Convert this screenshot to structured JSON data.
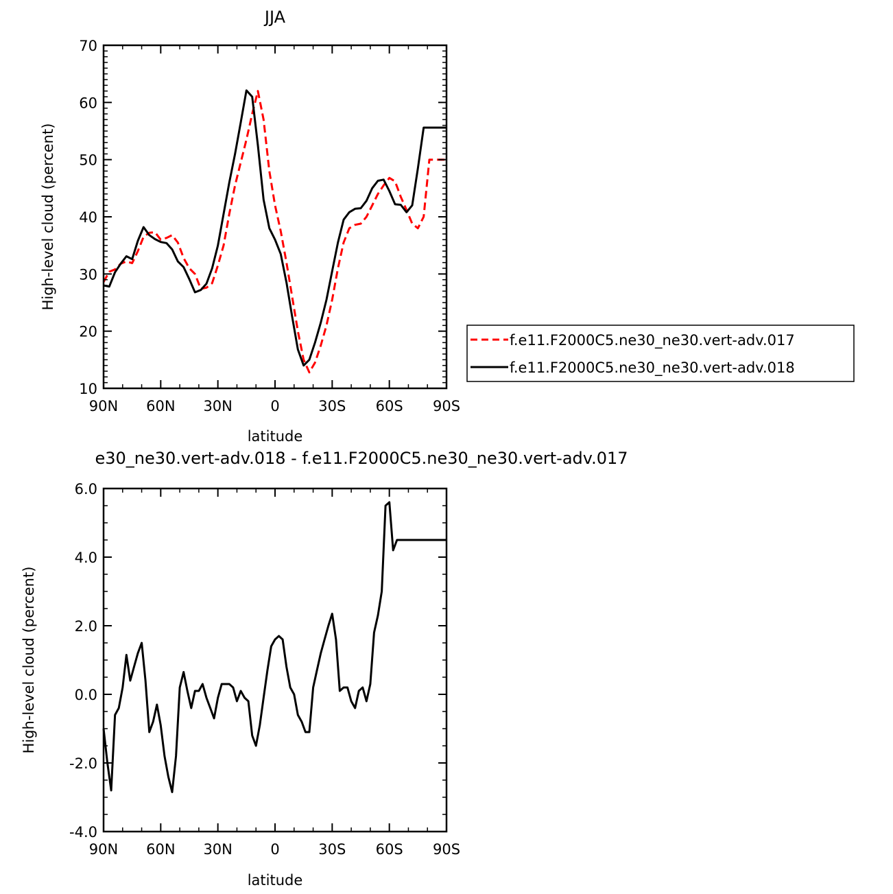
{
  "chart_data": [
    {
      "type": "line",
      "title": "JJA",
      "xlabel": "latitude",
      "ylabel": "High-level cloud (percent)",
      "xlim": [
        -90,
        90
      ],
      "ylim": [
        10,
        70
      ],
      "x_ticks": [
        -90,
        -60,
        -30,
        0,
        30,
        60,
        90
      ],
      "x_tick_labels": [
        "90N",
        "60N",
        "30N",
        "0",
        "30S",
        "60S",
        "90S"
      ],
      "y_ticks": [
        10,
        20,
        30,
        40,
        50,
        60,
        70
      ],
      "y_tick_labels": [
        "10",
        "20",
        "30",
        "40",
        "50",
        "60",
        "70"
      ],
      "grid": false,
      "legend_position": "right",
      "series": [
        {
          "name": "f.e11.F2000C5.ne30_ne30.vert-adv.017",
          "color": "#ff0000",
          "dash": "dashed",
          "x": [
            -90,
            -87,
            -84,
            -81,
            -78,
            -75,
            -72,
            -69,
            -66,
            -63,
            -60,
            -57,
            -54,
            -51,
            -48,
            -45,
            -42,
            -39,
            -36,
            -33,
            -30,
            -27,
            -24,
            -21,
            -18,
            -15,
            -12,
            -9,
            -6,
            -3,
            0,
            3,
            6,
            9,
            12,
            15,
            18,
            21,
            24,
            27,
            30,
            33,
            36,
            39,
            42,
            45,
            48,
            51,
            54,
            57,
            60,
            63,
            66,
            69,
            72,
            75,
            78,
            81,
            84,
            87,
            90
          ],
          "y": [
            28.6,
            30.4,
            30.8,
            31.8,
            32.2,
            31.9,
            34.0,
            36.5,
            37.2,
            37.3,
            36.0,
            36.3,
            36.8,
            35.5,
            32.8,
            31.0,
            30.0,
            27.4,
            27.6,
            28.4,
            31.5,
            35.0,
            40.5,
            45.5,
            49.5,
            53.5,
            58.0,
            62.0,
            57.0,
            48.0,
            42.0,
            37.5,
            32.0,
            26.0,
            20.0,
            15.0,
            12.8,
            14.5,
            17.5,
            21.0,
            25.5,
            31.0,
            35.5,
            38.0,
            38.6,
            38.8,
            40.0,
            42.0,
            44.0,
            45.5,
            46.8,
            46.2,
            43.5,
            41.2,
            38.8,
            38.0,
            40.0,
            50.0,
            50.0,
            50.0,
            50.0
          ]
        },
        {
          "name": "f.e11.F2000C5.ne30_ne30.vert-adv.018",
          "color": "#000000",
          "dash": "solid",
          "x": [
            -90,
            -87,
            -84,
            -81,
            -78,
            -75,
            -72,
            -69,
            -66,
            -63,
            -60,
            -57,
            -54,
            -51,
            -48,
            -45,
            -42,
            -39,
            -36,
            -33,
            -30,
            -27,
            -24,
            -21,
            -18,
            -15,
            -12,
            -9,
            -6,
            -3,
            0,
            3,
            6,
            9,
            12,
            15,
            18,
            21,
            24,
            27,
            30,
            33,
            36,
            39,
            42,
            45,
            48,
            51,
            54,
            57,
            60,
            63,
            66,
            69,
            72,
            75,
            78,
            81,
            84,
            87,
            90
          ],
          "y": [
            28.0,
            27.8,
            30.3,
            31.8,
            33.1,
            32.6,
            35.8,
            38.2,
            36.8,
            36.1,
            35.6,
            35.4,
            34.3,
            32.2,
            31.2,
            29.1,
            26.8,
            27.2,
            28.3,
            31.0,
            35.0,
            40.5,
            46.0,
            51.0,
            56.5,
            62.1,
            61.0,
            52.5,
            43.0,
            38.0,
            36.0,
            33.5,
            28.5,
            22.5,
            16.8,
            14.0,
            15.0,
            18.0,
            21.5,
            25.5,
            30.5,
            35.5,
            39.5,
            40.8,
            41.4,
            41.5,
            42.8,
            45.0,
            46.3,
            46.5,
            44.5,
            42.2,
            42.1,
            40.8,
            42.0,
            48.5,
            55.6,
            55.6,
            55.6,
            55.6,
            55.6
          ]
        }
      ]
    },
    {
      "type": "line",
      "title": "e30_ne30.vert-adv.018 - f.e11.F2000C5.ne30_ne30.vert-adv.017",
      "xlabel": "latitude",
      "ylabel": "High-level cloud (percent)",
      "xlim": [
        -90,
        90
      ],
      "ylim": [
        -4,
        6
      ],
      "x_ticks": [
        -90,
        -60,
        -30,
        0,
        30,
        60,
        90
      ],
      "x_tick_labels": [
        "90N",
        "60N",
        "30N",
        "0",
        "30S",
        "60S",
        "90S"
      ],
      "y_ticks": [
        -4,
        -2,
        0,
        2,
        4,
        6
      ],
      "y_tick_labels": [
        "-4.0",
        "-2.0",
        "0.0",
        "2.0",
        "4.0",
        "6.0"
      ],
      "grid": false,
      "series": [
        {
          "color": "#000000",
          "dash": "solid",
          "x": [
            -90,
            -88,
            -86,
            -84,
            -82,
            -80,
            -78,
            -76,
            -74,
            -72,
            -70,
            -68,
            -66,
            -64,
            -62,
            -60,
            -58,
            -56,
            -54,
            -52,
            -50,
            -48,
            -46,
            -44,
            -42,
            -40,
            -38,
            -36,
            -34,
            -32,
            -30,
            -28,
            -26,
            -24,
            -22,
            -20,
            -18,
            -16,
            -14,
            -12,
            -10,
            -8,
            -6,
            -4,
            -2,
            0,
            2,
            4,
            6,
            8,
            10,
            12,
            14,
            16,
            18,
            20,
            22,
            24,
            26,
            28,
            30,
            32,
            34,
            36,
            38,
            40,
            42,
            44,
            46,
            48,
            50,
            52,
            54,
            56,
            58,
            60,
            62,
            64,
            66,
            68,
            70,
            72,
            74,
            76,
            78,
            80,
            82,
            84,
            86,
            88,
            90
          ],
          "y": [
            -1.0,
            -2.0,
            -2.8,
            -0.6,
            -0.4,
            0.2,
            1.15,
            0.4,
            0.8,
            1.2,
            1.5,
            0.4,
            -1.1,
            -0.8,
            -0.3,
            -0.9,
            -1.8,
            -2.4,
            -2.85,
            -1.8,
            0.2,
            0.65,
            0.1,
            -0.4,
            0.1,
            0.1,
            0.3,
            -0.1,
            -0.4,
            -0.7,
            -0.1,
            0.3,
            0.3,
            0.3,
            0.2,
            -0.2,
            0.1,
            -0.1,
            -0.2,
            -1.2,
            -1.5,
            -0.9,
            -0.1,
            0.7,
            1.4,
            1.6,
            1.7,
            1.6,
            0.8,
            0.2,
            0.0,
            -0.6,
            -0.8,
            -1.1,
            -1.1,
            0.2,
            0.7,
            1.2,
            1.6,
            2.0,
            2.35,
            1.6,
            0.1,
            0.2,
            0.2,
            -0.2,
            -0.4,
            0.1,
            0.2,
            -0.2,
            0.3,
            1.8,
            2.3,
            3.0,
            5.5,
            5.6,
            4.2,
            4.5,
            4.5,
            4.5,
            4.5,
            4.5,
            4.5,
            4.5,
            4.5,
            4.5,
            4.5,
            4.5,
            4.5,
            4.5,
            4.5
          ]
        }
      ]
    }
  ]
}
